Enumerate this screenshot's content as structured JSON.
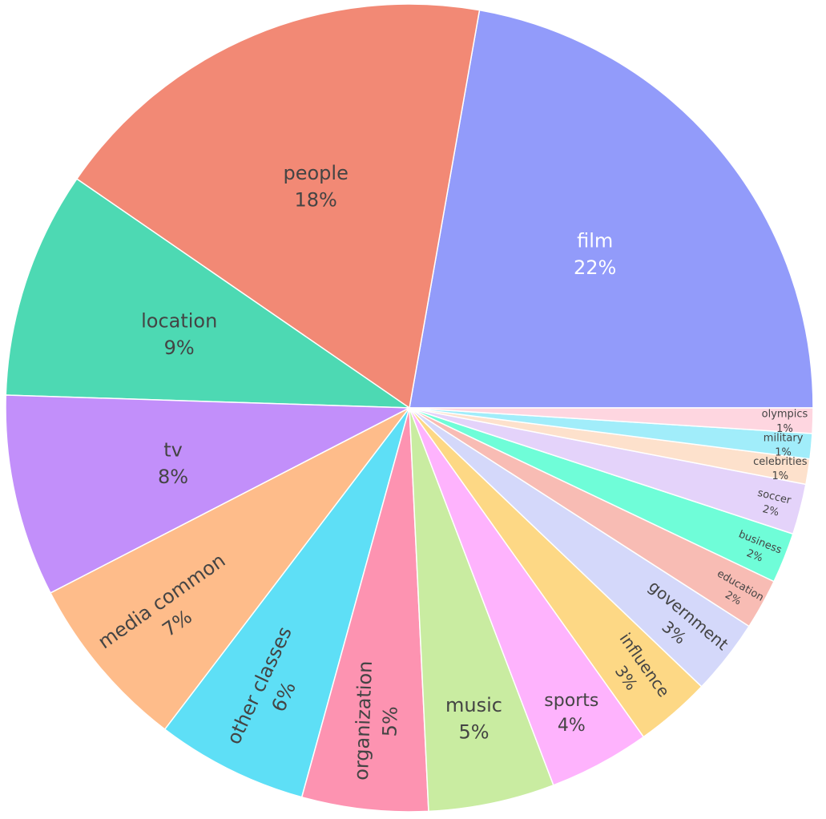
{
  "chart_data": {
    "type": "pie",
    "title": "",
    "start_direction": "counterclockwise from 3 o'clock",
    "slices": [
      {
        "label": "film",
        "value": 22,
        "text": "22%",
        "color": "#929BFA",
        "label_color": "#ffffff"
      },
      {
        "label": "people",
        "value": 18,
        "text": "18%",
        "color": "#F28975",
        "label_color": "#444444"
      },
      {
        "label": "location",
        "value": 9,
        "text": "9%",
        "color": "#4DD9B3",
        "label_color": "#444444"
      },
      {
        "label": "tv",
        "value": 8,
        "text": "8%",
        "color": "#C28FFA",
        "label_color": "#444444"
      },
      {
        "label": "media common",
        "value": 7,
        "text": "7%",
        "color": "#FEBC8A",
        "label_color": "#444444"
      },
      {
        "label": "other classes",
        "value": 6,
        "text": "6%",
        "color": "#5EDFF6",
        "label_color": "#444444"
      },
      {
        "label": "organization",
        "value": 5,
        "text": "5%",
        "color": "#FD93B1",
        "label_color": "#444444"
      },
      {
        "label": "music",
        "value": 5,
        "text": "5%",
        "color": "#C9ECA1",
        "label_color": "#444444"
      },
      {
        "label": "sports",
        "value": 4,
        "text": "4%",
        "color": "#FEB3FD",
        "label_color": "#444444"
      },
      {
        "label": "influence",
        "value": 3,
        "text": "3%",
        "color": "#FDD885",
        "label_color": "#444444"
      },
      {
        "label": "government",
        "value": 3,
        "text": "3%",
        "color": "#D4D8FA",
        "label_color": "#444444"
      },
      {
        "label": "education",
        "value": 2,
        "text": "2%",
        "color": "#F8BCB4",
        "label_color": "#444444"
      },
      {
        "label": "business",
        "value": 2,
        "text": "2%",
        "color": "#6FFDD8",
        "label_color": "#444444"
      },
      {
        "label": "soccer",
        "value": 2,
        "text": "2%",
        "color": "#E4D3FA",
        "label_color": "#444444"
      },
      {
        "label": "celebrities",
        "value": 1,
        "text": "1%",
        "color": "#FDE1CC",
        "label_color": "#444444"
      },
      {
        "label": "military",
        "value": 1,
        "text": "1%",
        "color": "#A1EDFA",
        "label_color": "#444444"
      },
      {
        "label": "olympics",
        "value": 1,
        "text": "1%",
        "color": "#FED6E0",
        "label_color": "#444444"
      }
    ]
  }
}
